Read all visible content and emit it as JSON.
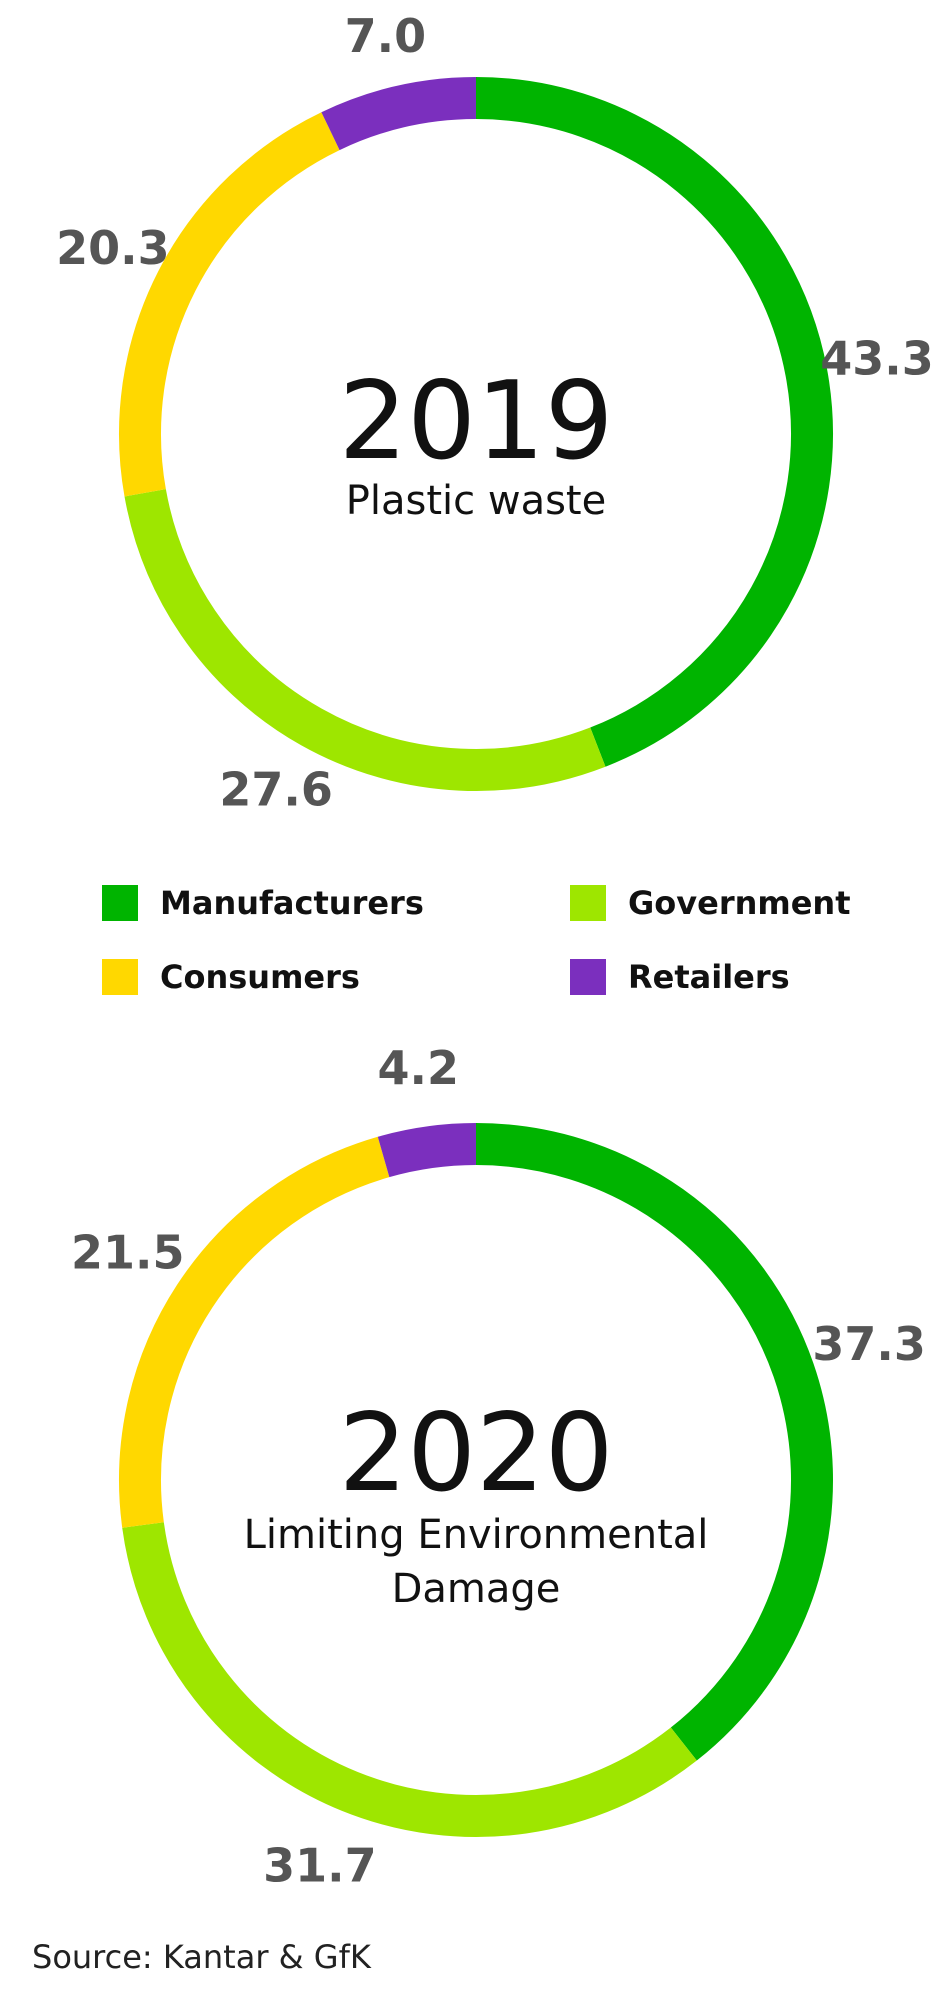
{
  "chart_data": [
    {
      "type": "pie",
      "title": "2019",
      "subtitle": [
        "Plastic waste"
      ],
      "categories": [
        "Manufacturers",
        "Government",
        "Consumers",
        "Retailers"
      ],
      "values": [
        43.3,
        27.6,
        20.3,
        7.0
      ],
      "labels": [
        "43.3",
        "27.6",
        "20.3",
        "7.0"
      ]
    },
    {
      "type": "pie",
      "title": "2020",
      "subtitle": [
        "Limiting Environmental",
        "Damage"
      ],
      "categories": [
        "Manufacturers",
        "Government",
        "Consumers",
        "Retailers"
      ],
      "values": [
        37.3,
        31.7,
        21.5,
        4.2
      ],
      "labels": [
        "37.3",
        "31.7",
        "21.5",
        "4.2"
      ]
    }
  ],
  "legend": {
    "items": [
      {
        "label": "Manufacturers",
        "color": "#00b400"
      },
      {
        "label": "Government",
        "color": "#9ee600"
      },
      {
        "label": "Consumers",
        "color": "#ffd800"
      },
      {
        "label": "Retailers",
        "color": "#7b2fbe"
      }
    ]
  },
  "source": "Source: Kantar & GfK"
}
